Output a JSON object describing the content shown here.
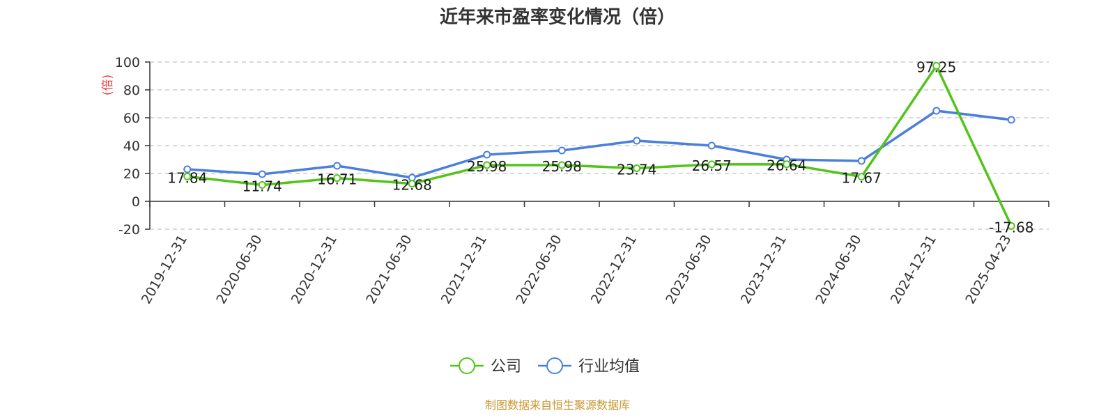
{
  "chart_data": {
    "type": "line",
    "title": "近年来市盈率变化情况（倍）",
    "ylabel": "(倍)",
    "ylim": [
      -20,
      100
    ],
    "yticks": [
      -20,
      0,
      20,
      40,
      60,
      80,
      100
    ],
    "categories": [
      "2019-12-31",
      "2020-06-30",
      "2020-12-31",
      "2021-06-30",
      "2021-12-31",
      "2022-06-30",
      "2022-12-31",
      "2023-06-30",
      "2023-12-31",
      "2024-06-30",
      "2024-12-31",
      "2025-04-23"
    ],
    "grid": true,
    "legend_position": "bottom",
    "series": [
      {
        "name": "公司",
        "color": "#52c41a",
        "values": [
          17.84,
          11.74,
          16.71,
          12.68,
          25.98,
          25.98,
          23.74,
          26.57,
          26.64,
          17.67,
          97.25,
          -17.68
        ],
        "labels": [
          "17.84",
          "11.74",
          "16.71",
          "12.68",
          "25.98",
          "25.98",
          "23.74",
          "26.57",
          "26.64",
          "17.67",
          "97.25",
          "-17.68"
        ]
      },
      {
        "name": "行业均值",
        "color": "#4a7fdc",
        "values": [
          23,
          19.5,
          25.5,
          17,
          33.5,
          36.5,
          43.5,
          40,
          30,
          29,
          65,
          58.5
        ]
      }
    ]
  },
  "source_note": "制图数据来自恒生聚源数据库",
  "colors": {
    "ylabel": "#e53935",
    "source_note": "#c8962e",
    "axis": "#333333",
    "grid": "#cccccc"
  }
}
